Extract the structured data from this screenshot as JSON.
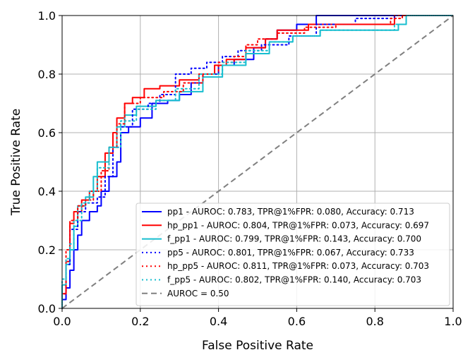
{
  "chart_data": {
    "type": "line",
    "title": "",
    "xlabel": "False Positive Rate",
    "ylabel": "True Positive Rate",
    "xlim": [
      0.0,
      1.0
    ],
    "ylim": [
      0.0,
      1.0
    ],
    "xticks": [
      "0.0",
      "0.2",
      "0.4",
      "0.6",
      "0.8",
      "1.0"
    ],
    "yticks": [
      "0.0",
      "0.2",
      "0.4",
      "0.6",
      "0.8",
      "1.0"
    ],
    "grid": true,
    "legend_position": "lower-right",
    "series": [
      {
        "name": "pp1 - AUROC: 0.783, TPR@1%FPR: 0.080, Accuracy: 0.713",
        "color": "#0000ff",
        "style": "solid",
        "x": [
          0,
          0,
          0.01,
          0.01,
          0.02,
          0.02,
          0.03,
          0.03,
          0.04,
          0.04,
          0.05,
          0.05,
          0.07,
          0.07,
          0.09,
          0.09,
          0.1,
          0.1,
          0.12,
          0.12,
          0.14,
          0.14,
          0.15,
          0.15,
          0.17,
          0.17,
          0.2,
          0.2,
          0.23,
          0.23,
          0.27,
          0.27,
          0.3,
          0.3,
          0.33,
          0.33,
          0.36,
          0.36,
          0.4,
          0.4,
          0.44,
          0.44,
          0.49,
          0.49,
          0.52,
          0.52,
          0.55,
          0.55,
          0.6,
          0.6,
          0.65,
          0.65,
          0.71,
          0.71,
          0.79,
          0.79,
          0.85,
          0.85,
          0.88,
          0.88,
          1.0
        ],
        "y": [
          0,
          0.03,
          0.03,
          0.07,
          0.07,
          0.13,
          0.13,
          0.2,
          0.2,
          0.25,
          0.25,
          0.3,
          0.3,
          0.33,
          0.33,
          0.35,
          0.35,
          0.4,
          0.4,
          0.45,
          0.45,
          0.5,
          0.5,
          0.6,
          0.6,
          0.62,
          0.62,
          0.65,
          0.65,
          0.7,
          0.7,
          0.71,
          0.71,
          0.73,
          0.73,
          0.77,
          0.77,
          0.8,
          0.8,
          0.83,
          0.83,
          0.85,
          0.85,
          0.89,
          0.89,
          0.92,
          0.92,
          0.95,
          0.95,
          0.97,
          0.97,
          1.0,
          1.0,
          1.0,
          1.0,
          1.0,
          1.0,
          1.0,
          1.0,
          1.0,
          1.0
        ]
      },
      {
        "name": "hp_pp1 - AUROC: 0.804, TPR@1%FPR: 0.073, Accuracy: 0.697",
        "color": "#ff0000",
        "style": "solid",
        "x": [
          0,
          0,
          0.01,
          0.01,
          0.02,
          0.02,
          0.03,
          0.03,
          0.05,
          0.05,
          0.07,
          0.07,
          0.09,
          0.09,
          0.11,
          0.11,
          0.13,
          0.13,
          0.14,
          0.14,
          0.16,
          0.16,
          0.18,
          0.18,
          0.21,
          0.21,
          0.25,
          0.25,
          0.3,
          0.3,
          0.35,
          0.35,
          0.39,
          0.39,
          0.42,
          0.42,
          0.47,
          0.47,
          0.52,
          0.52,
          0.55,
          0.55,
          0.63,
          0.63,
          0.7,
          0.7,
          0.85,
          0.85,
          0.87,
          0.87,
          1.0
        ],
        "y": [
          0,
          0.05,
          0.05,
          0.16,
          0.16,
          0.29,
          0.29,
          0.33,
          0.33,
          0.37,
          0.37,
          0.4,
          0.4,
          0.45,
          0.45,
          0.53,
          0.53,
          0.6,
          0.6,
          0.65,
          0.65,
          0.7,
          0.7,
          0.72,
          0.72,
          0.75,
          0.75,
          0.76,
          0.76,
          0.78,
          0.78,
          0.8,
          0.8,
          0.83,
          0.83,
          0.85,
          0.85,
          0.89,
          0.89,
          0.92,
          0.92,
          0.95,
          0.95,
          0.97,
          0.97,
          0.97,
          0.97,
          1.0,
          1.0,
          1.0,
          1.0
        ]
      },
      {
        "name": "f_pp1 - AUROC: 0.799, TPR@1%FPR: 0.143, Accuracy: 0.700",
        "color": "#17becf",
        "style": "solid",
        "x": [
          0,
          0,
          0.01,
          0.01,
          0.02,
          0.02,
          0.03,
          0.03,
          0.04,
          0.04,
          0.06,
          0.06,
          0.08,
          0.08,
          0.09,
          0.09,
          0.12,
          0.12,
          0.14,
          0.14,
          0.16,
          0.16,
          0.19,
          0.19,
          0.24,
          0.24,
          0.3,
          0.3,
          0.36,
          0.36,
          0.41,
          0.41,
          0.47,
          0.47,
          0.53,
          0.53,
          0.59,
          0.59,
          0.66,
          0.66,
          0.86,
          0.86,
          0.88,
          0.88,
          1.0
        ],
        "y": [
          0,
          0.08,
          0.08,
          0.15,
          0.15,
          0.2,
          0.2,
          0.28,
          0.28,
          0.35,
          0.35,
          0.38,
          0.38,
          0.45,
          0.45,
          0.5,
          0.5,
          0.55,
          0.55,
          0.62,
          0.62,
          0.66,
          0.66,
          0.69,
          0.69,
          0.71,
          0.71,
          0.74,
          0.74,
          0.79,
          0.79,
          0.83,
          0.83,
          0.87,
          0.87,
          0.91,
          0.91,
          0.93,
          0.93,
          0.95,
          0.95,
          0.97,
          0.97,
          1.0,
          1.0
        ]
      },
      {
        "name": "pp5 - AUROC: 0.801, TPR@1%FPR: 0.067, Accuracy: 0.733",
        "color": "#0000ff",
        "style": "dotted",
        "x": [
          0,
          0,
          0.01,
          0.01,
          0.02,
          0.02,
          0.04,
          0.04,
          0.06,
          0.06,
          0.09,
          0.09,
          0.11,
          0.11,
          0.13,
          0.13,
          0.15,
          0.15,
          0.18,
          0.18,
          0.22,
          0.22,
          0.25,
          0.25,
          0.29,
          0.29,
          0.33,
          0.33,
          0.37,
          0.37,
          0.41,
          0.41,
          0.45,
          0.45,
          0.51,
          0.51,
          0.58,
          0.58,
          0.65,
          0.65,
          0.75,
          0.75,
          0.85,
          0.85,
          0.88,
          0.88,
          1.0
        ],
        "y": [
          0,
          0.05,
          0.05,
          0.15,
          0.15,
          0.27,
          0.27,
          0.33,
          0.33,
          0.36,
          0.36,
          0.38,
          0.38,
          0.45,
          0.45,
          0.55,
          0.55,
          0.62,
          0.62,
          0.68,
          0.68,
          0.7,
          0.7,
          0.73,
          0.73,
          0.8,
          0.8,
          0.82,
          0.82,
          0.84,
          0.84,
          0.86,
          0.86,
          0.88,
          0.88,
          0.9,
          0.9,
          0.93,
          0.93,
          0.97,
          0.97,
          0.99,
          0.99,
          1.0,
          1.0,
          1.0,
          1.0
        ]
      },
      {
        "name": "hp_pp5 - AUROC: 0.811, TPR@1%FPR: 0.073, Accuracy: 0.703",
        "color": "#ff0000",
        "style": "dotted",
        "x": [
          0,
          0,
          0.01,
          0.01,
          0.02,
          0.02,
          0.04,
          0.04,
          0.06,
          0.06,
          0.08,
          0.08,
          0.1,
          0.1,
          0.12,
          0.12,
          0.14,
          0.14,
          0.16,
          0.16,
          0.2,
          0.2,
          0.26,
          0.26,
          0.31,
          0.31,
          0.36,
          0.36,
          0.4,
          0.4,
          0.44,
          0.44,
          0.47,
          0.47,
          0.5,
          0.5,
          0.55,
          0.55,
          0.62,
          0.62,
          0.7,
          0.7,
          0.84,
          0.84,
          0.87,
          0.87,
          1.0
        ],
        "y": [
          0,
          0.05,
          0.05,
          0.2,
          0.2,
          0.3,
          0.3,
          0.35,
          0.35,
          0.37,
          0.37,
          0.4,
          0.4,
          0.47,
          0.47,
          0.55,
          0.55,
          0.63,
          0.63,
          0.7,
          0.7,
          0.72,
          0.72,
          0.74,
          0.74,
          0.77,
          0.77,
          0.8,
          0.8,
          0.84,
          0.84,
          0.86,
          0.86,
          0.9,
          0.9,
          0.92,
          0.92,
          0.94,
          0.94,
          0.96,
          0.96,
          0.97,
          0.97,
          0.99,
          0.99,
          1.0,
          1.0
        ]
      },
      {
        "name": "f_pp5 - AUROC: 0.802, TPR@1%FPR: 0.140, Accuracy: 0.703",
        "color": "#17becf",
        "style": "dotted",
        "x": [
          0,
          0,
          0.01,
          0.01,
          0.02,
          0.02,
          0.03,
          0.03,
          0.05,
          0.05,
          0.07,
          0.07,
          0.09,
          0.09,
          0.12,
          0.12,
          0.15,
          0.15,
          0.19,
          0.19,
          0.24,
          0.24,
          0.29,
          0.29,
          0.35,
          0.35,
          0.41,
          0.41,
          0.47,
          0.47,
          0.53,
          0.53,
          0.59,
          0.59,
          0.66,
          0.66,
          0.85,
          0.85,
          0.88,
          0.88,
          1.0
        ],
        "y": [
          0,
          0.1,
          0.1,
          0.17,
          0.17,
          0.22,
          0.22,
          0.3,
          0.3,
          0.36,
          0.36,
          0.4,
          0.4,
          0.48,
          0.48,
          0.55,
          0.55,
          0.64,
          0.64,
          0.68,
          0.68,
          0.71,
          0.71,
          0.75,
          0.75,
          0.8,
          0.8,
          0.84,
          0.84,
          0.88,
          0.88,
          0.91,
          0.91,
          0.93,
          0.93,
          0.95,
          0.95,
          0.97,
          0.97,
          1.0,
          1.0
        ]
      },
      {
        "name": "AUROC = 0.50",
        "color": "#808080",
        "style": "dashed",
        "x": [
          0,
          1
        ],
        "y": [
          0,
          1
        ]
      }
    ]
  }
}
